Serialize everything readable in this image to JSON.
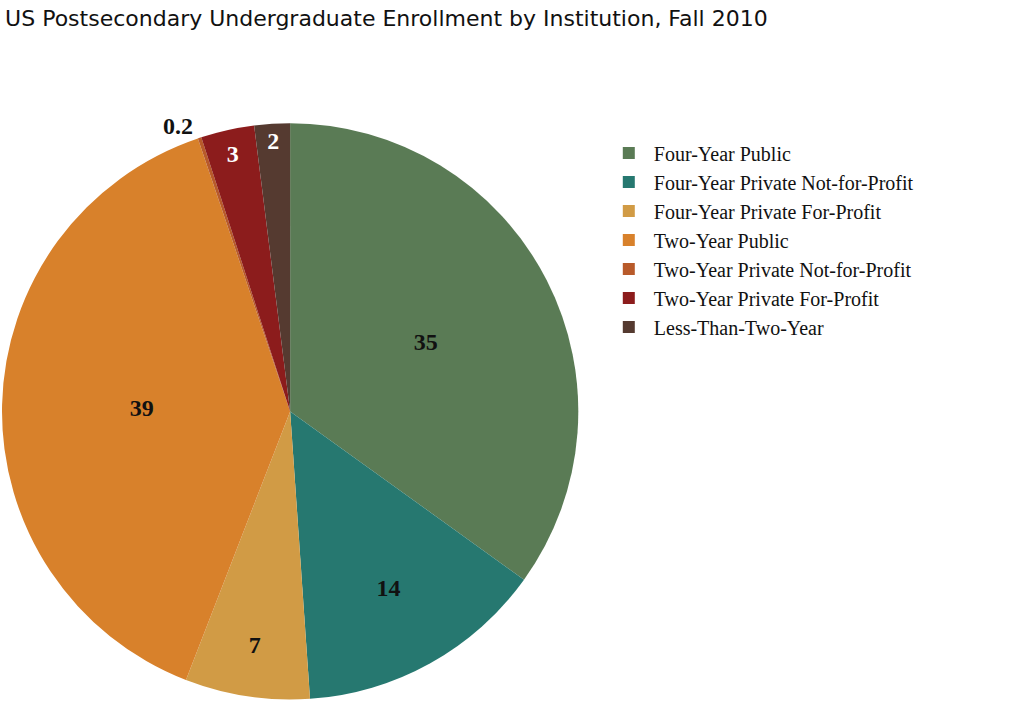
{
  "chart_data": {
    "type": "pie",
    "title": "US Postsecondary Undergraduate Enrollment by Institution, Fall 2010",
    "categories": [
      "Four-Year Public",
      "Four-Year Private Not-for-Profit",
      "Four-Year Private For-Profit",
      "Two-Year Public",
      "Two-Year Private Not-for-Profit",
      "Two-Year Private For-Profit",
      "Less-Than-Two-Year"
    ],
    "values": [
      35,
      14,
      7,
      39,
      0.2,
      3,
      2
    ],
    "colors": [
      "#5a7b55",
      "#267870",
      "#d19b45",
      "#d8812b",
      "#b85a2a",
      "#8c1c1c",
      "#553a30"
    ],
    "data_labels": true,
    "legend": "right"
  }
}
